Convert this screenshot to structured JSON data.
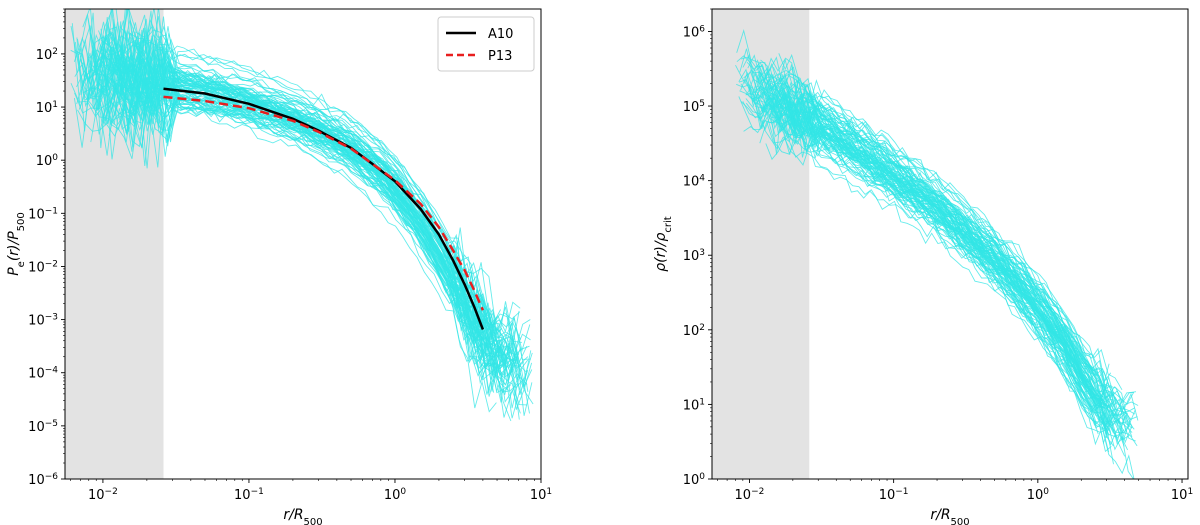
{
  "chart_data": [
    {
      "type": "line",
      "xscale": "log",
      "yscale": "log",
      "xlim": [
        0.0055,
        10
      ],
      "ylim": [
        1e-06,
        700
      ],
      "grid": false,
      "xlabel": {
        "main": "r/R",
        "sub": "500"
      },
      "ylabel": {
        "main": "P",
        "sub1": "e",
        "mid": "(r)/P",
        "sub2": "500"
      },
      "xticks": [
        {
          "value": 0.01,
          "base": "10",
          "exp": "−2"
        },
        {
          "value": 0.1,
          "base": "10",
          "exp": "−1"
        },
        {
          "value": 1,
          "base": "10",
          "exp": "0"
        },
        {
          "value": 10,
          "base": "10",
          "exp": "1"
        }
      ],
      "yticks": [
        {
          "value": 1e-06,
          "base": "10",
          "exp": "−6"
        },
        {
          "value": 1e-05,
          "base": "10",
          "exp": "−5"
        },
        {
          "value": 0.0001,
          "base": "10",
          "exp": "−4"
        },
        {
          "value": 0.001,
          "base": "10",
          "exp": "−3"
        },
        {
          "value": 0.01,
          "base": "10",
          "exp": "−2"
        },
        {
          "value": 0.1,
          "base": "10",
          "exp": "−1"
        },
        {
          "value": 1,
          "base": "10",
          "exp": "0"
        },
        {
          "value": 10,
          "base": "10",
          "exp": "1"
        },
        {
          "value": 100,
          "base": "10",
          "exp": "2"
        }
      ],
      "shaded_region": {
        "x_range": [
          0.0055,
          0.026
        ],
        "color": "#e3e3e3"
      },
      "sample_profiles": {
        "color": "#33e6e6",
        "count": 90,
        "median_points": [
          [
            0.006,
            60
          ],
          [
            0.008,
            45
          ],
          [
            0.01,
            40
          ],
          [
            0.015,
            35
          ],
          [
            0.026,
            28
          ],
          [
            0.05,
            20
          ],
          [
            0.1,
            12
          ],
          [
            0.2,
            6
          ],
          [
            0.3,
            3.5
          ],
          [
            0.5,
            1.6
          ],
          [
            0.8,
            0.55
          ],
          [
            1.0,
            0.28
          ],
          [
            1.5,
            0.065
          ],
          [
            2.0,
            0.017
          ],
          [
            3.0,
            0.0022
          ],
          [
            4.0,
            0.00045
          ],
          [
            5.0,
            0.0002
          ],
          [
            7.0,
            0.00012
          ],
          [
            9.0,
            0.0001
          ]
        ]
      },
      "legend": {
        "position": "upper-right"
      },
      "series": [
        {
          "name": "A10",
          "color": "#000000",
          "style": "solid",
          "points": [
            [
              0.026,
              22
            ],
            [
              0.05,
              18
            ],
            [
              0.1,
              11.5
            ],
            [
              0.2,
              6.0
            ],
            [
              0.3,
              3.6
            ],
            [
              0.5,
              1.7
            ],
            [
              0.7,
              0.85
            ],
            [
              1.0,
              0.4
            ],
            [
              1.5,
              0.12
            ],
            [
              2.0,
              0.04
            ],
            [
              2.5,
              0.013
            ],
            [
              3.0,
              0.0046
            ],
            [
              3.5,
              0.0017
            ],
            [
              4.0,
              0.00065
            ]
          ]
        },
        {
          "name": "P13",
          "color": "#e81e1e",
          "style": "dashed",
          "points": [
            [
              0.026,
              15.5
            ],
            [
              0.05,
              13.0
            ],
            [
              0.1,
              9.5
            ],
            [
              0.2,
              5.5
            ],
            [
              0.3,
              3.4
            ],
            [
              0.5,
              1.65
            ],
            [
              0.7,
              0.85
            ],
            [
              1.0,
              0.42
            ],
            [
              1.5,
              0.15
            ],
            [
              2.0,
              0.055
            ],
            [
              2.5,
              0.02
            ],
            [
              3.0,
              0.0085
            ],
            [
              3.5,
              0.0035
            ],
            [
              4.0,
              0.0015
            ]
          ]
        }
      ]
    },
    {
      "type": "line",
      "xscale": "log",
      "yscale": "log",
      "xlim": [
        0.0055,
        11
      ],
      "ylim": [
        1,
        2000000.0
      ],
      "grid": false,
      "xlabel": {
        "main": "r/R",
        "sub": "500"
      },
      "ylabel": {
        "main": "ρ(r)/ρ",
        "sub": "crit"
      },
      "xticks": [
        {
          "value": 0.01,
          "base": "10",
          "exp": "−2"
        },
        {
          "value": 0.1,
          "base": "10",
          "exp": "−1"
        },
        {
          "value": 1,
          "base": "10",
          "exp": "0"
        },
        {
          "value": 10,
          "base": "10",
          "exp": "1"
        }
      ],
      "yticks": [
        {
          "value": 1,
          "base": "10",
          "exp": "0"
        },
        {
          "value": 10,
          "base": "10",
          "exp": "1"
        },
        {
          "value": 100,
          "base": "10",
          "exp": "2"
        },
        {
          "value": 1000,
          "base": "10",
          "exp": "3"
        },
        {
          "value": 10000,
          "base": "10",
          "exp": "4"
        },
        {
          "value": 100000,
          "base": "10",
          "exp": "5"
        },
        {
          "value": 1000000,
          "base": "10",
          "exp": "6"
        }
      ],
      "shaded_region": {
        "x_range": [
          0.0055,
          0.026
        ],
        "color": "#e3e3e3"
      },
      "sample_profiles": {
        "color": "#33e6e6",
        "count": 90,
        "median_points": [
          [
            0.008,
            250000
          ],
          [
            0.01,
            180000
          ],
          [
            0.015,
            120000
          ],
          [
            0.026,
            70000
          ],
          [
            0.05,
            30000
          ],
          [
            0.1,
            12000
          ],
          [
            0.2,
            4500
          ],
          [
            0.3,
            2200
          ],
          [
            0.5,
            900
          ],
          [
            0.7,
            450
          ],
          [
            1.0,
            200
          ],
          [
            1.5,
            70
          ],
          [
            2.0,
            25
          ],
          [
            3.0,
            8
          ],
          [
            4.0,
            5
          ],
          [
            5.0,
            4
          ]
        ]
      },
      "series": []
    }
  ]
}
